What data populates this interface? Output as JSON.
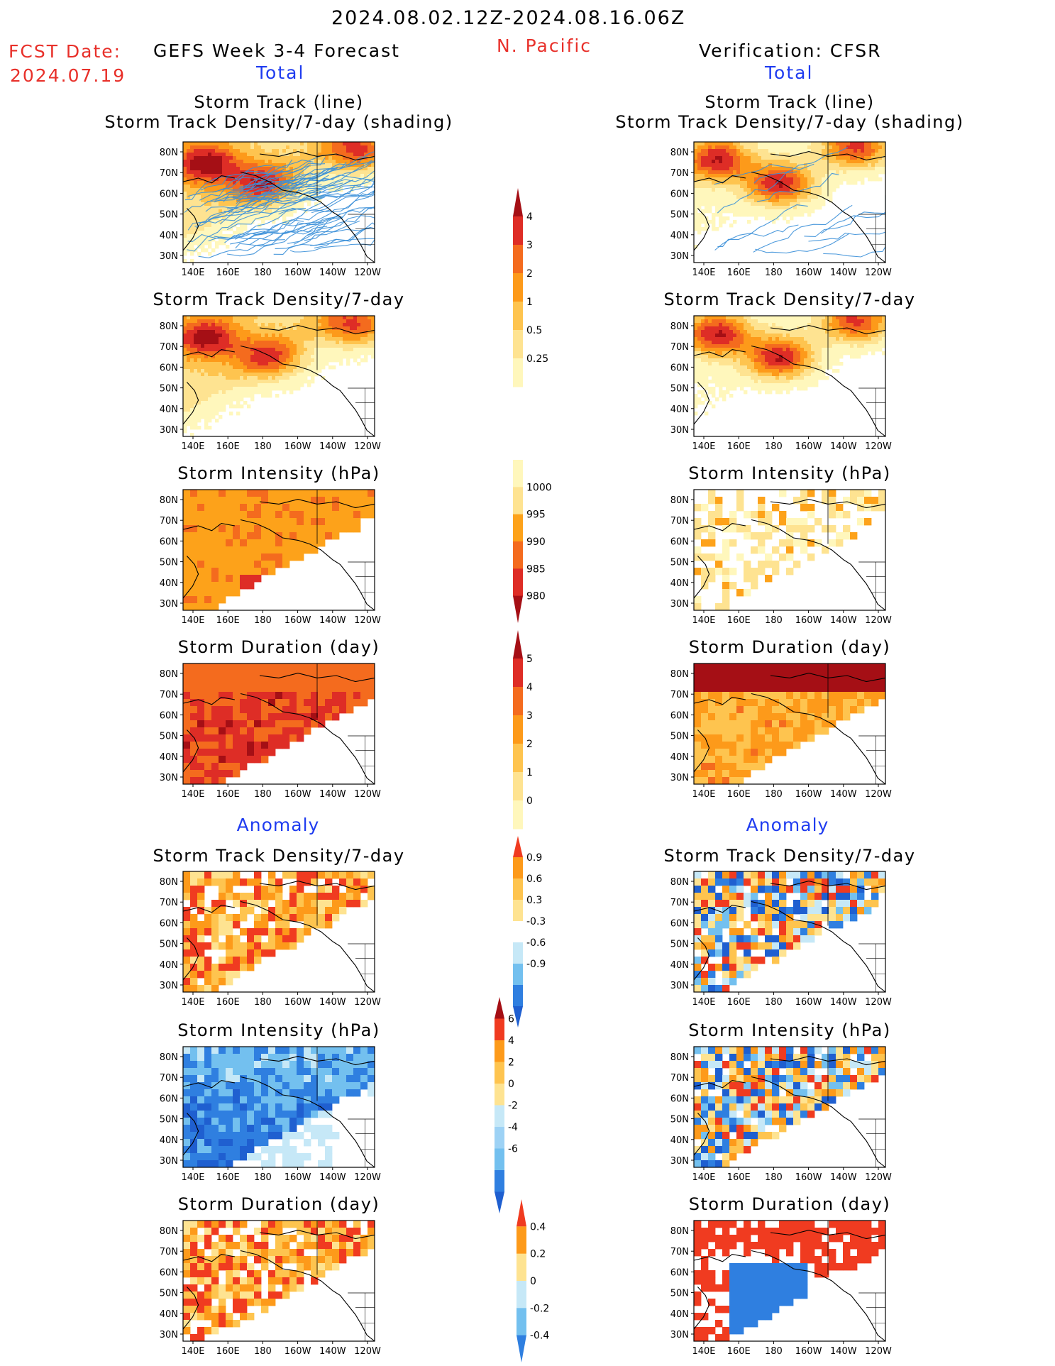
{
  "header": {
    "date_range": "2024.08.02.12Z-2024.08.16.06Z",
    "fcst_label": "FCST Date:",
    "fcst_date": "2024.07.19",
    "model": "GEFS Week 3-4 Forecast",
    "region": "N. Pacific",
    "verification": "Verification: CFSR",
    "total_left": "Total",
    "total_right": "Total",
    "anomaly_left": "Anomaly",
    "anomaly_right": "Anomaly"
  },
  "lat_ticks": [
    "80N",
    "70N",
    "60N",
    "50N",
    "40N",
    "30N"
  ],
  "lon_ticks": [
    "140E",
    "160E",
    "180",
    "160W",
    "140W",
    "120W"
  ],
  "panels": [
    {
      "id": "fc-track",
      "col": "left",
      "row": 0,
      "title1": "Storm Track (line)",
      "title2": "Storm Track Density/7-day (shading)",
      "kind": "density",
      "tracks": true,
      "scheme": "dens",
      "seed": 11,
      "style": "smooth",
      "hi": [
        [
          0.18,
          0.12,
          0.9
        ],
        [
          0.35,
          0.42,
          0.75
        ],
        [
          0.08,
          0.92,
          0.85
        ]
      ],
      "base": 0.35
    },
    {
      "id": "vr-track",
      "col": "right",
      "row": 0,
      "title1": "Storm Track (line)",
      "title2": "Storm Track Density/7-day (shading)",
      "kind": "density",
      "tracks": true,
      "scheme": "dens",
      "seed": 21,
      "style": "smooth",
      "hi": [
        [
          0.15,
          0.12,
          1
        ],
        [
          0.35,
          0.45,
          1
        ],
        [
          0.05,
          0.85,
          0.9
        ]
      ],
      "base": 0.1
    },
    {
      "id": "fc-dens",
      "col": "left",
      "row": 1,
      "title1": "Storm Track Density/7-day",
      "kind": "density",
      "scheme": "dens",
      "seed": 12,
      "style": "smooth",
      "hi": [
        [
          0.18,
          0.12,
          0.85
        ],
        [
          0.35,
          0.45,
          0.7
        ],
        [
          0.08,
          0.9,
          0.8
        ]
      ],
      "base": 0.35
    },
    {
      "id": "vr-dens",
      "col": "right",
      "row": 1,
      "title1": "Storm Track Density/7-day",
      "kind": "density",
      "scheme": "dens",
      "seed": 22,
      "style": "smooth",
      "hi": [
        [
          0.15,
          0.12,
          1
        ],
        [
          0.35,
          0.45,
          1
        ],
        [
          0.05,
          0.85,
          0.9
        ]
      ],
      "base": 0.1
    },
    {
      "id": "fc-int",
      "col": "left",
      "row": 2,
      "title1": "Storm Intensity (hPa)",
      "kind": "intensity",
      "scheme": "int",
      "seed": 13,
      "style": "block",
      "base": 0.45
    },
    {
      "id": "vr-int",
      "col": "right",
      "row": 2,
      "title1": "Storm Intensity (hPa)",
      "kind": "intensity",
      "scheme": "int",
      "seed": 23,
      "style": "block",
      "base": 0.2
    },
    {
      "id": "fc-dur",
      "col": "left",
      "row": 3,
      "title1": "Storm Duration (day)",
      "kind": "duration",
      "scheme": "dur",
      "seed": 14,
      "style": "block",
      "base": 0.7
    },
    {
      "id": "vr-dur",
      "col": "right",
      "row": 3,
      "title1": "Storm Duration (day)",
      "kind": "duration",
      "scheme": "dur",
      "seed": 24,
      "style": "block",
      "base": 0.45
    },
    {
      "id": "fc-adens",
      "col": "left",
      "row": 4,
      "title1": "Storm Track Density/7-day",
      "kind": "anom-pos",
      "scheme": "anom",
      "seed": 15,
      "style": "block",
      "base": 0.55
    },
    {
      "id": "vr-adens",
      "col": "right",
      "row": 4,
      "title1": "Storm Track Density/7-day",
      "kind": "anom-mix",
      "scheme": "anom",
      "seed": 25,
      "style": "block",
      "base": 0.5
    },
    {
      "id": "fc-aint",
      "col": "left",
      "row": 5,
      "title1": "Storm Intensity (hPa)",
      "kind": "anom-neg",
      "scheme": "anom",
      "seed": 16,
      "style": "block",
      "base": 0.5
    },
    {
      "id": "vr-aint",
      "col": "right",
      "row": 5,
      "title1": "Storm Intensity (hPa)",
      "kind": "anom-mix",
      "scheme": "anom",
      "seed": 26,
      "style": "block",
      "base": 0.5
    },
    {
      "id": "fc-adur",
      "col": "left",
      "row": 6,
      "title1": "Storm Duration (day)",
      "kind": "anom-pos",
      "scheme": "anom",
      "seed": 17,
      "style": "block",
      "base": 0.6
    },
    {
      "id": "vr-adur",
      "col": "right",
      "row": 6,
      "title1": "Storm Duration (day)",
      "kind": "anom-split",
      "scheme": "anom",
      "seed": 27,
      "style": "block",
      "base": 0.5
    }
  ],
  "colorbars": [
    {
      "id": "cb-density",
      "labels": [
        "4",
        "3",
        "2",
        "1",
        "0.5",
        "0.25"
      ],
      "colors": [
        "#a50f15",
        "#de2d26",
        "#f46b1e",
        "#fd9a1a",
        "#fec44f",
        "#fee391",
        "#fff7bc"
      ],
      "cap": "top"
    },
    {
      "id": "cb-intensity",
      "labels": [
        "1000",
        "995",
        "990",
        "985",
        "980"
      ],
      "colors": [
        "#fff7bc",
        "#fee391",
        "#fda21a",
        "#f46b1e",
        "#de2d26",
        "#a50f15"
      ],
      "cap": "bottom"
    },
    {
      "id": "cb-duration",
      "labels": [
        "5",
        "4",
        "3",
        "2",
        "1",
        "0"
      ],
      "colors": [
        "#a50f15",
        "#de2d26",
        "#f46b1e",
        "#fd9a1a",
        "#fec44f",
        "#fee391",
        "#fff7bc"
      ],
      "cap": "top"
    },
    {
      "id": "cb-anom-density",
      "labels": [
        "0.9",
        "0.6",
        "0.3",
        "-0.3",
        "-0.6",
        "-0.9"
      ],
      "colors": [
        "#f03b20",
        "#fd9a1a",
        "#fec44f",
        "#fee391",
        "#ffffff",
        "#c6e8f7",
        "#73c0ef",
        "#2f7fe0",
        "#1f5fd0"
      ],
      "cap": "both"
    },
    {
      "id": "cb-anom-intensity",
      "labels": [
        "6",
        "4",
        "2",
        "0",
        "-2",
        "-4",
        "-6"
      ],
      "colors": [
        "#a50f15",
        "#f03b20",
        "#fd9a1a",
        "#fec44f",
        "#fee391",
        "#c6e8f7",
        "#9dd2f5",
        "#73c0ef",
        "#2f7fe0",
        "#1f5fd0"
      ],
      "cap": "both"
    },
    {
      "id": "cb-anom-duration",
      "labels": [
        "0.4",
        "0.2",
        "0",
        "-0.2",
        "-0.4"
      ],
      "colors": [
        "#f03b20",
        "#fd9a1a",
        "#fee391",
        "#c6e8f7",
        "#73c0ef",
        "#2f7fe0"
      ],
      "cap": "both"
    }
  ],
  "palettes": {
    "dens": [
      "#ffffff",
      "#fff7bc",
      "#fee391",
      "#fec44f",
      "#fd9a1a",
      "#f46b1e",
      "#de2d26",
      "#a50f15"
    ],
    "int": [
      "#ffffff",
      "#fff7bc",
      "#fee391",
      "#fda21a",
      "#f46b1e",
      "#de2d26",
      "#a50f15"
    ],
    "dur": [
      "#ffffff",
      "#fff7bc",
      "#fee391",
      "#fec44f",
      "#fd9a1a",
      "#f46b1e",
      "#de2d26",
      "#a50f15"
    ],
    "anom": [
      "#1f5fd0",
      "#2f7fe0",
      "#73c0ef",
      "#c6e8f7",
      "#ffffff",
      "#fee391",
      "#fec44f",
      "#fd9a1a",
      "#f03b20"
    ]
  }
}
